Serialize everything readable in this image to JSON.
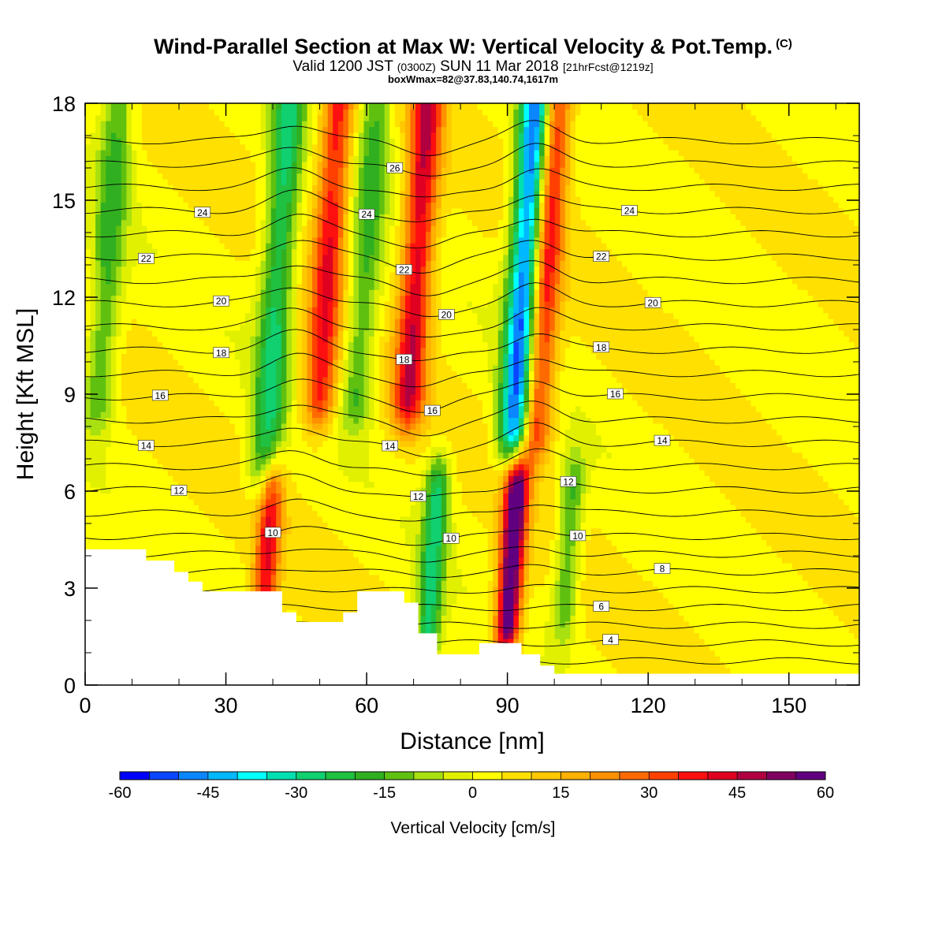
{
  "header": {
    "title": "Wind-Parallel Section at Max W: Vertical Velocity & Pot.Temp.",
    "copyright_mark": "(C)",
    "valid_prefix": "Valid 1200 JST",
    "valid_utc": "(0300Z)",
    "valid_date": "SUN 11 Mar 2018",
    "forecast": "[21hrFcst@1219z]",
    "box_info": "boxWmax=82@37.83,140.74,1617m"
  },
  "chart_data": {
    "type": "heatmap",
    "title": "Wind-Parallel Section at Max W: Vertical Velocity & Pot.Temp.",
    "xlabel": "Distance [nm]",
    "ylabel": "Height [Kft MSL]",
    "xlim": [
      0,
      165
    ],
    "ylim": [
      0,
      18
    ],
    "x_ticks": [
      "0",
      "30",
      "60",
      "90",
      "120",
      "150"
    ],
    "y_ticks": [
      "0",
      "3",
      "6",
      "9",
      "12",
      "15",
      "18"
    ],
    "colorbar": {
      "label": "Vertical Velocity [cm/s]",
      "range": [
        -60,
        60
      ],
      "step": 5,
      "tick_labels": [
        "-60",
        "-45",
        "-30",
        "-15",
        "0",
        "15",
        "30",
        "45",
        "60"
      ],
      "colors": [
        "#0000ff",
        "#0a46ff",
        "#0a86ff",
        "#00b8ff",
        "#00ffff",
        "#00e0b0",
        "#10d070",
        "#20c040",
        "#30b020",
        "#60c010",
        "#a8e010",
        "#e0f000",
        "#ffff00",
        "#ffe000",
        "#ffc800",
        "#ffb000",
        "#ff9000",
        "#ff6a00",
        "#ff4000",
        "#ff1010",
        "#e00020",
        "#b00040",
        "#800060",
        "#600080"
      ]
    },
    "vertical_velocity_features": [
      {
        "type": "updraft",
        "center_nm": 98,
        "height_kft": [
          8,
          18
        ],
        "peak_cm_s": 40
      },
      {
        "type": "updraft",
        "center_nm": 71,
        "height_kft": [
          9,
          18
        ],
        "peak_cm_s": 40
      },
      {
        "type": "updraft",
        "center_nm": 52,
        "height_kft": [
          9,
          18
        ],
        "peak_cm_s": 35
      },
      {
        "type": "updraft",
        "center_nm": 91,
        "height_kft": [
          2,
          6
        ],
        "peak_cm_s": 60
      },
      {
        "type": "updraft",
        "center_nm": 39,
        "height_kft": [
          3,
          6
        ],
        "peak_cm_s": 35
      },
      {
        "type": "downdraft",
        "center_nm": 94,
        "height_kft": [
          8,
          18
        ],
        "peak_cm_s": -60
      },
      {
        "type": "downdraft",
        "center_nm": 41,
        "height_kft": [
          7,
          18
        ],
        "peak_cm_s": -30
      },
      {
        "type": "downdraft",
        "center_nm": 74,
        "height_kft": [
          1.5,
          6
        ],
        "peak_cm_s": -30
      },
      {
        "type": "downdraft",
        "center_nm": 60,
        "height_kft": [
          9,
          18
        ],
        "peak_cm_s": -20
      },
      {
        "type": "downdraft",
        "center_nm": 5,
        "height_kft": [
          9,
          18
        ],
        "peak_cm_s": -20
      },
      {
        "type": "downdraft",
        "center_nm": 103,
        "height_kft": [
          2.5,
          6
        ],
        "peak_cm_s": -20
      }
    ],
    "potential_temperature": {
      "units": "C",
      "contour_interval": 1,
      "labels": [
        "4",
        "6",
        "8",
        "10",
        "10",
        "10",
        "12",
        "12",
        "12",
        "14",
        "14",
        "14",
        "16",
        "16",
        "16",
        "18",
        "18",
        "18",
        "20",
        "20",
        "20",
        "22",
        "22",
        "22",
        "24",
        "24",
        "24",
        "26"
      ]
    },
    "terrain": {
      "note": "White area marks terrain below the section",
      "profile": [
        [
          0,
          4.2
        ],
        [
          13,
          4.2
        ],
        [
          13,
          3.85
        ],
        [
          19,
          3.85
        ],
        [
          19,
          3.5
        ],
        [
          22,
          3.5
        ],
        [
          22,
          3.2
        ],
        [
          25,
          3.2
        ],
        [
          25,
          2.9
        ],
        [
          42,
          2.9
        ],
        [
          42,
          2.25
        ],
        [
          45,
          2.25
        ],
        [
          45,
          1.95
        ],
        [
          55,
          1.95
        ],
        [
          55,
          2.25
        ],
        [
          58,
          2.25
        ],
        [
          58,
          2.9
        ],
        [
          68,
          2.9
        ],
        [
          68,
          2.55
        ],
        [
          71,
          2.55
        ],
        [
          71,
          1.6
        ],
        [
          75,
          1.6
        ],
        [
          75,
          0.95
        ],
        [
          84,
          0.95
        ],
        [
          84,
          1.3
        ],
        [
          93,
          1.3
        ],
        [
          93,
          0.95
        ],
        [
          97,
          0.95
        ],
        [
          97,
          0.6
        ],
        [
          100,
          0.6
        ],
        [
          100,
          0.35
        ],
        [
          165,
          0.35
        ]
      ]
    }
  }
}
